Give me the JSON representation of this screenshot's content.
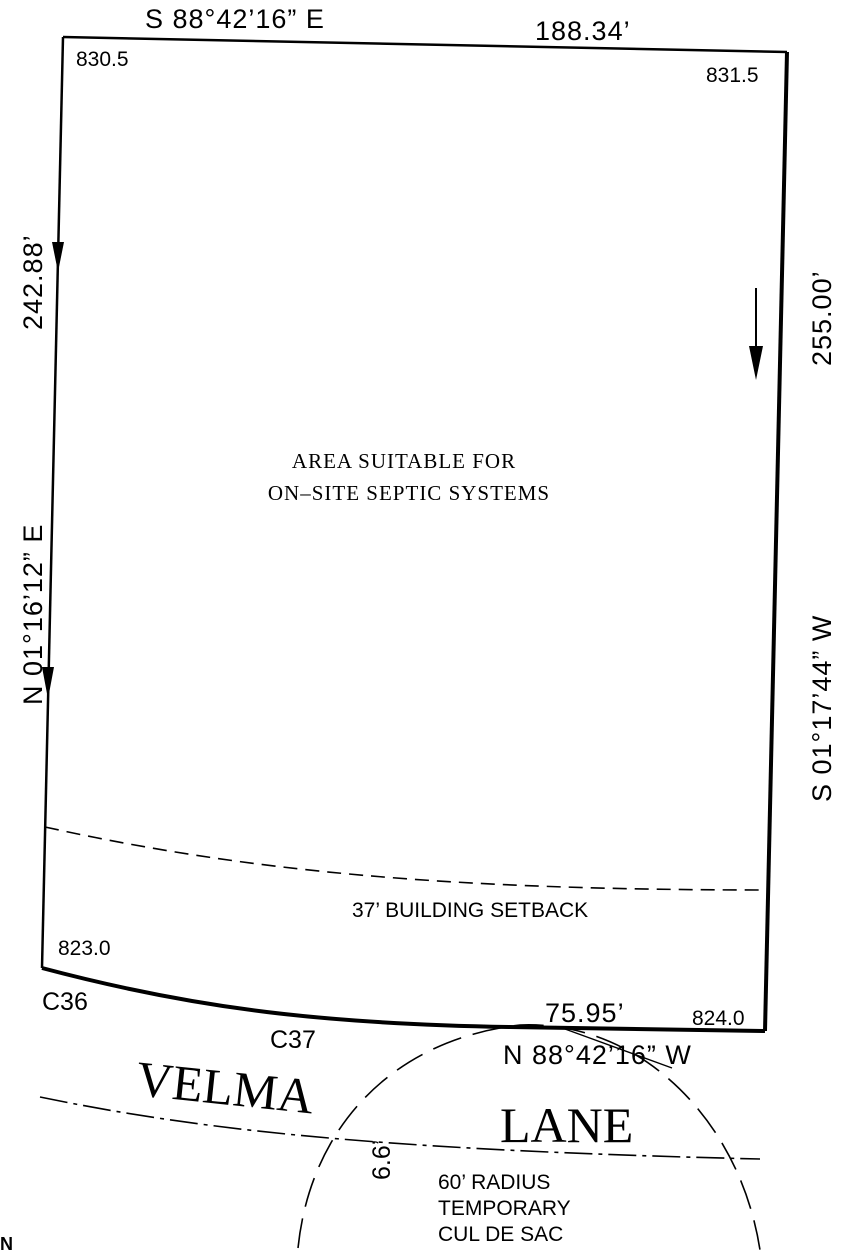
{
  "boundary": {
    "north_bearing": "S 88°42’16” E",
    "north_distance": "188.34’",
    "east_bearing": "S 01°17’44” W",
    "east_distance": "255.00’",
    "west_bearing": "N 01°16’12” E",
    "west_distance": "242.88’",
    "south_bearing": "N 88°42’16” W",
    "south_distance": "75.95’"
  },
  "elevations": {
    "nw": "830.5",
    "ne": "831.5",
    "sw": "823.0",
    "se": "824.0"
  },
  "curves": {
    "c36": "C36",
    "c37": "C37"
  },
  "area_note": {
    "line1": "AREA SUITABLE FOR",
    "line2": "ON–SITE SEPTIC SYSTEMS"
  },
  "setback_label": "37’ BUILDING SETBACK",
  "street": {
    "name_left": "VELMA",
    "name_right": "LANE",
    "width_label": "6.6’"
  },
  "cul_de_sac": {
    "line1": "60’ RADIUS",
    "line2": "TEMPORARY",
    "line3": "CUL DE SAC"
  },
  "corner_mark": "N"
}
